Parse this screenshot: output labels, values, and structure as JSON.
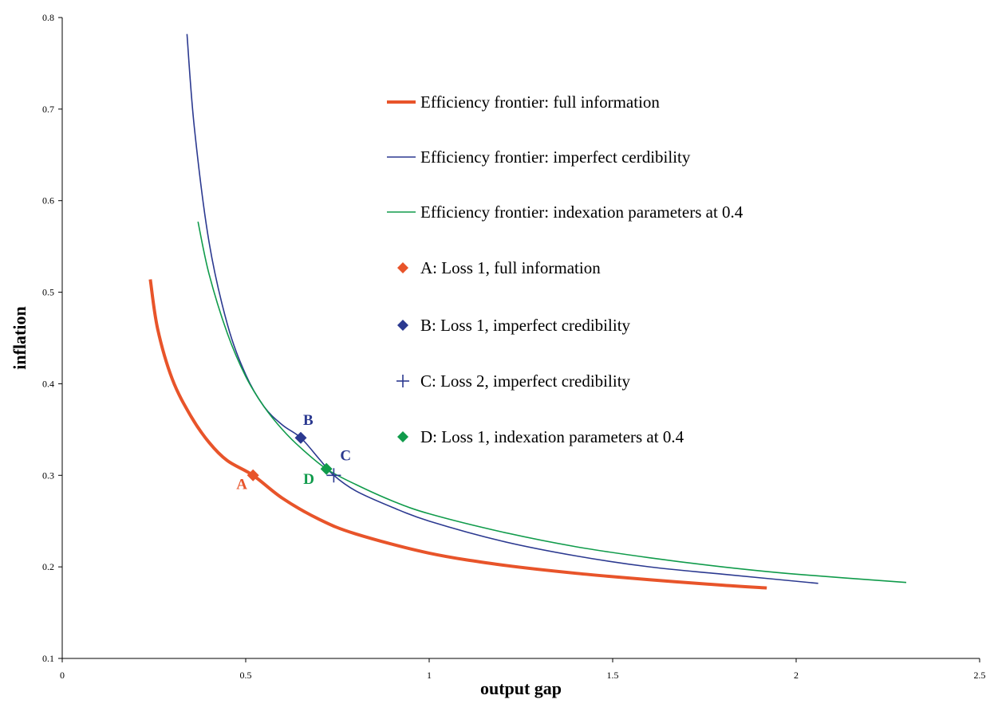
{
  "chart_data": {
    "type": "line",
    "xlabel": "output gap",
    "ylabel": "inflation",
    "xlim": [
      0,
      2.5
    ],
    "ylim": [
      0.1,
      0.8
    ],
    "xticks": [
      "0",
      "0.5",
      "1",
      "1.5",
      "2",
      "2.5"
    ],
    "yticks": [
      "0.1",
      "0.2",
      "0.3",
      "0.4",
      "0.5",
      "0.6",
      "0.7",
      "0.8"
    ],
    "grid": false,
    "legend_position": "top-right",
    "colors": {
      "full_information": "#E8542A",
      "imperfect_credibility": "#2B3990",
      "indexation": "#109B4B"
    },
    "series": [
      {
        "name": "Efficiency frontier: full information",
        "color": "#E8542A",
        "x": [
          0.24,
          0.26,
          0.3,
          0.35,
          0.4,
          0.45,
          0.52,
          0.6,
          0.7,
          0.8,
          1.0,
          1.2,
          1.4,
          1.6,
          1.8,
          1.92
        ],
        "y": [
          0.514,
          0.46,
          0.405,
          0.365,
          0.336,
          0.316,
          0.3,
          0.275,
          0.252,
          0.236,
          0.215,
          0.202,
          0.193,
          0.186,
          0.18,
          0.177
        ]
      },
      {
        "name": "Efficiency frontier: imperfect cerdibility",
        "color": "#2B3990",
        "x": [
          0.34,
          0.36,
          0.4,
          0.45,
          0.5,
          0.55,
          0.6,
          0.65,
          0.7,
          0.74,
          0.8,
          0.9,
          1.0,
          1.2,
          1.4,
          1.6,
          1.8,
          2.06
        ],
        "y": [
          0.782,
          0.68,
          0.555,
          0.465,
          0.41,
          0.375,
          0.355,
          0.341,
          0.318,
          0.3,
          0.283,
          0.265,
          0.25,
          0.228,
          0.212,
          0.2,
          0.192,
          0.182
        ]
      },
      {
        "name": "Efficiency frontier: indexation parameters at 0.4",
        "color": "#109B4B",
        "x": [
          0.37,
          0.4,
          0.45,
          0.5,
          0.55,
          0.6,
          0.65,
          0.72,
          0.8,
          0.9,
          1.0,
          1.2,
          1.4,
          1.6,
          1.8,
          2.0,
          2.3
        ],
        "y": [
          0.577,
          0.52,
          0.455,
          0.408,
          0.375,
          0.35,
          0.33,
          0.307,
          0.29,
          0.272,
          0.258,
          0.238,
          0.222,
          0.21,
          0.2,
          0.192,
          0.183
        ]
      }
    ],
    "points": [
      {
        "label": "A",
        "name": "A: Loss 1, full information",
        "x": 0.52,
        "y": 0.3,
        "marker": "diamond",
        "color": "#E8542A"
      },
      {
        "label": "B",
        "name": "B: Loss 1, imperfect credibility",
        "x": 0.65,
        "y": 0.341,
        "marker": "diamond",
        "color": "#2B3990"
      },
      {
        "label": "C",
        "name": "C: Loss 2, imperfect credibility",
        "x": 0.74,
        "y": 0.3,
        "marker": "plus",
        "color": "#2B3990"
      },
      {
        "label": "D",
        "name": "D: Loss 1, indexation parameters at 0.4",
        "x": 0.72,
        "y": 0.307,
        "marker": "diamond",
        "color": "#109B4B"
      }
    ]
  }
}
